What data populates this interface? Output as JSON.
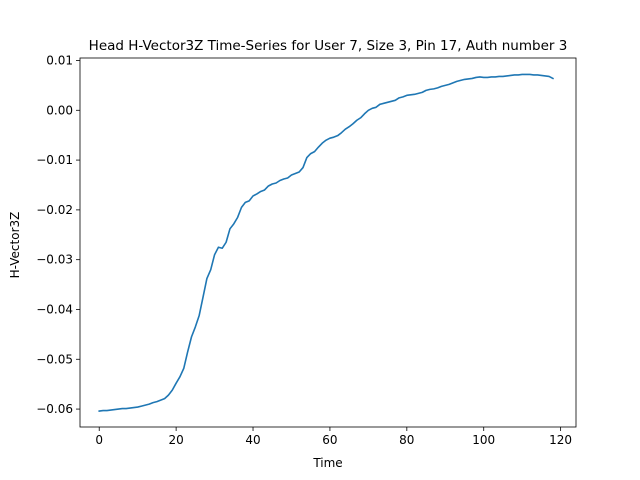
{
  "chart_data": {
    "type": "line",
    "title": "Head H-Vector3Z Time-Series for User 7, Size 3, Pin 17, Auth number 3",
    "xlabel": "Time",
    "ylabel": "H-Vector3Z",
    "xlim": [
      -5,
      124
    ],
    "ylim": [
      -0.0636,
      0.0105
    ],
    "grid": false,
    "xticks": [
      0,
      20,
      40,
      60,
      80,
      100,
      120
    ],
    "xtick_labels": [
      "0",
      "20",
      "40",
      "60",
      "80",
      "100",
      "120"
    ],
    "yticks": [
      -0.06,
      -0.05,
      -0.04,
      -0.03,
      -0.02,
      -0.01,
      0.0,
      0.01
    ],
    "ytick_labels": [
      "−0.06",
      "−0.05",
      "−0.04",
      "−0.03",
      "−0.02",
      "−0.01",
      "0.00",
      "0.01"
    ],
    "series": [
      {
        "color": "#1f77b4",
        "x": [
          0,
          1,
          2,
          3,
          4,
          5,
          6,
          7,
          8,
          9,
          10,
          11,
          12,
          13,
          14,
          15,
          16,
          17,
          18,
          19,
          20,
          21,
          22,
          23,
          24,
          25,
          26,
          27,
          28,
          29,
          30,
          31,
          32,
          33,
          34,
          35,
          36,
          37,
          38,
          39,
          40,
          41,
          42,
          43,
          44,
          45,
          46,
          47,
          48,
          49,
          50,
          51,
          52,
          53,
          54,
          55,
          56,
          57,
          58,
          59,
          60,
          61,
          62,
          63,
          64,
          65,
          66,
          67,
          68,
          69,
          70,
          71,
          72,
          73,
          74,
          75,
          76,
          77,
          78,
          79,
          80,
          81,
          82,
          83,
          84,
          85,
          86,
          87,
          88,
          89,
          90,
          91,
          92,
          93,
          94,
          95,
          96,
          97,
          98,
          99,
          100,
          101,
          102,
          103,
          104,
          105,
          106,
          107,
          108,
          109,
          110,
          111,
          112,
          113,
          114,
          115,
          116,
          117,
          118
        ],
        "y": [
          -0.0604,
          -0.0603,
          -0.0603,
          -0.0602,
          -0.0601,
          -0.06,
          -0.0599,
          -0.0599,
          -0.0598,
          -0.0597,
          -0.0596,
          -0.0594,
          -0.0592,
          -0.059,
          -0.0587,
          -0.0585,
          -0.0582,
          -0.0579,
          -0.0572,
          -0.0562,
          -0.0548,
          -0.0535,
          -0.0518,
          -0.0485,
          -0.0455,
          -0.0435,
          -0.0412,
          -0.0375,
          -0.0338,
          -0.032,
          -0.029,
          -0.0275,
          -0.0277,
          -0.0265,
          -0.0238,
          -0.0228,
          -0.0215,
          -0.0195,
          -0.0185,
          -0.0182,
          -0.0172,
          -0.0168,
          -0.0163,
          -0.016,
          -0.0152,
          -0.0148,
          -0.0146,
          -0.0141,
          -0.0138,
          -0.0136,
          -0.013,
          -0.0127,
          -0.0124,
          -0.0115,
          -0.0095,
          -0.0087,
          -0.0083,
          -0.0074,
          -0.0066,
          -0.006,
          -0.0056,
          -0.0054,
          -0.0051,
          -0.0045,
          -0.0038,
          -0.0033,
          -0.0027,
          -0.002,
          -0.0015,
          -0.0007,
          0.0,
          0.0004,
          0.0006,
          0.0012,
          0.0014,
          0.0016,
          0.0018,
          0.002,
          0.0025,
          0.0027,
          0.003,
          0.0031,
          0.0032,
          0.0034,
          0.0036,
          0.004,
          0.0042,
          0.0043,
          0.0045,
          0.0048,
          0.005,
          0.0052,
          0.0055,
          0.0058,
          0.006,
          0.0062,
          0.0063,
          0.0064,
          0.0066,
          0.0067,
          0.0066,
          0.0066,
          0.0067,
          0.0067,
          0.0068,
          0.0068,
          0.0069,
          0.007,
          0.0071,
          0.0071,
          0.0072,
          0.0072,
          0.0072,
          0.0071,
          0.0071,
          0.007,
          0.0069,
          0.0068,
          0.0064
        ]
      }
    ]
  }
}
